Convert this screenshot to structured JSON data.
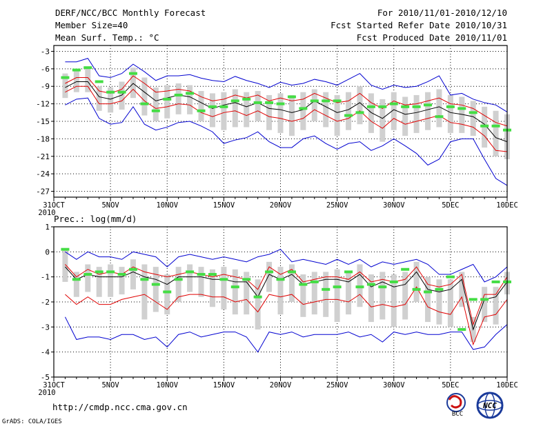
{
  "header": {
    "title": "DERF/NCC/BCC Monthly Forecast",
    "member_size": "Member Size=40",
    "variable": "Mean Surf. Temp.: °C",
    "forecast_period": "For 2010/11/01-2010/12/10",
    "start_date": "Fcst Started Refer Date 2010/10/31",
    "produced_date": "Fcst Produced Date 2010/11/01"
  },
  "footer": {
    "url": "http://cmdp.ncc.cma.gov.cn",
    "credit": "GrADS: COLA/IGES",
    "logos": [
      "BCC",
      "NCC"
    ]
  },
  "colors": {
    "ensemble_box": "#d0d0d0",
    "mean_line": "#000000",
    "spread_line": "#e00000",
    "extreme_line": "#0000d0",
    "observed_marker": "#44dd44",
    "grid": "#000000"
  },
  "chart_data": [
    {
      "type": "line",
      "name": "temperature",
      "title": "Mean Surf. Temp.: °C",
      "xlabel": "",
      "ylabel": "°C",
      "xlim": [
        0,
        40
      ],
      "ylim": [
        -28,
        -2
      ],
      "yticks": [
        -3,
        -6,
        -9,
        -12,
        -15,
        -18,
        -21,
        -24,
        -27
      ],
      "ytick_labels": [
        "-3",
        "-6",
        "-9",
        "-12",
        "-15",
        "-18",
        "-21",
        "-24",
        "-27"
      ],
      "xtick_days": [
        0,
        5,
        10,
        15,
        20,
        25,
        30,
        35,
        40
      ],
      "xtick_labels": [
        "31OCT",
        "5NOV",
        "10NOV",
        "15NOV",
        "20NOV",
        "25NOV",
        "30NOV",
        "5DEC",
        "10DEC"
      ],
      "year_label": "2010",
      "days": [
        1,
        2,
        3,
        4,
        5,
        6,
        7,
        8,
        9,
        10,
        11,
        12,
        13,
        14,
        15,
        16,
        17,
        18,
        19,
        20,
        21,
        22,
        23,
        24,
        25,
        26,
        27,
        28,
        29,
        30,
        31,
        32,
        33,
        34,
        35,
        36,
        37,
        38,
        39,
        40
      ],
      "series": [
        {
          "name": "ensemble max",
          "values": [
            -4.8,
            -4.8,
            -4.2,
            -7.2,
            -7.5,
            -6.8,
            -5.2,
            -6.5,
            -8.0,
            -7.2,
            -7.2,
            -7.0,
            -7.6,
            -8.0,
            -8.2,
            -7.3,
            -8.0,
            -8.5,
            -9.2,
            -8.3,
            -8.8,
            -8.5,
            -7.8,
            -8.2,
            -8.8,
            -7.8,
            -6.8,
            -8.8,
            -9.5,
            -8.8,
            -9.2,
            -9.0,
            -8.2,
            -7.2,
            -10.5,
            -10.2,
            -11.2,
            -11.8,
            -12.2,
            -13.4
          ]
        },
        {
          "name": "mean + spread",
          "values": [
            -8.5,
            -7.5,
            -7.5,
            -9.8,
            -10.2,
            -9.5,
            -7.2,
            -8.5,
            -10.0,
            -9.8,
            -9.5,
            -9.8,
            -10.8,
            -11.5,
            -11.2,
            -10.5,
            -11.0,
            -10.5,
            -11.5,
            -11.0,
            -11.5,
            -11.2,
            -10.2,
            -11.0,
            -11.8,
            -11.5,
            -10.2,
            -11.8,
            -12.8,
            -11.5,
            -12.2,
            -12.0,
            -11.5,
            -11.0,
            -12.0,
            -12.2,
            -12.8,
            -14.0,
            -15.2,
            -15.8
          ]
        },
        {
          "name": "ensemble mean",
          "values": [
            -9.2,
            -8.2,
            -8.2,
            -10.8,
            -11.2,
            -10.5,
            -8.5,
            -10.0,
            -11.5,
            -11.0,
            -10.5,
            -10.8,
            -11.8,
            -12.8,
            -12.2,
            -11.8,
            -12.5,
            -11.8,
            -12.8,
            -13.0,
            -13.5,
            -13.0,
            -11.5,
            -12.5,
            -13.5,
            -13.0,
            -11.8,
            -13.5,
            -14.5,
            -13.0,
            -13.8,
            -13.5,
            -13.0,
            -12.5,
            -13.5,
            -13.8,
            -14.2,
            -15.5,
            -17.8,
            -18.5
          ]
        },
        {
          "name": "mean - spread",
          "values": [
            -10.0,
            -9.0,
            -9.0,
            -12.0,
            -12.0,
            -11.5,
            -9.5,
            -11.5,
            -12.8,
            -12.5,
            -12.0,
            -12.2,
            -13.5,
            -14.2,
            -13.5,
            -13.2,
            -14.0,
            -13.2,
            -14.2,
            -14.5,
            -15.0,
            -14.5,
            -13.0,
            -14.0,
            -15.0,
            -14.5,
            -13.2,
            -15.0,
            -16.2,
            -14.5,
            -15.5,
            -15.0,
            -14.5,
            -14.0,
            -15.2,
            -15.5,
            -16.0,
            -17.5,
            -20.0,
            -20.2
          ]
        },
        {
          "name": "ensemble min",
          "values": [
            -12.2,
            -11.2,
            -11.0,
            -14.5,
            -15.5,
            -15.2,
            -12.5,
            -15.5,
            -16.5,
            -16.0,
            -15.2,
            -15.0,
            -15.8,
            -16.8,
            -18.8,
            -18.2,
            -17.8,
            -16.8,
            -18.5,
            -19.5,
            -19.5,
            -18.0,
            -17.5,
            -18.8,
            -19.8,
            -18.8,
            -18.5,
            -20.0,
            -19.2,
            -18.0,
            -19.2,
            -20.5,
            -22.5,
            -21.5,
            -18.5,
            -18.0,
            -18.0,
            -21.5,
            -24.8,
            -26.0
          ]
        },
        {
          "name": "observed",
          "values": [
            -7.5,
            -6.2,
            -5.8,
            -8.2,
            -10.0,
            -10.0,
            -6.8,
            -12.0,
            -13.2,
            -11.2,
            -10.5,
            -10.2,
            -13.2,
            -12.5,
            -12.5,
            -11.5,
            -11.2,
            -11.8,
            -11.8,
            -12.0,
            -10.8,
            -12.8,
            -11.5,
            -11.5,
            -11.5,
            -14.0,
            -13.5,
            -12.5,
            -12.5,
            -12.0,
            -12.5,
            -12.5,
            -12.2,
            -14.2,
            -12.5,
            -12.8,
            -13.5,
            -15.8,
            -15.8,
            -16.5
          ]
        }
      ],
      "box_range": {
        "high": [
          -6.8,
          -6.2,
          -6.0,
          -9.0,
          -9.2,
          -8.2,
          -5.8,
          -7.5,
          -9.2,
          -8.8,
          -8.5,
          -8.8,
          -9.8,
          -10.2,
          -10.0,
          -9.5,
          -10.0,
          -9.8,
          -10.5,
          -10.2,
          -10.5,
          -10.0,
          -9.5,
          -10.0,
          -10.5,
          -10.0,
          -9.0,
          -10.2,
          -11.2,
          -10.0,
          -10.8,
          -10.5,
          -10.0,
          -9.5,
          -10.5,
          -10.8,
          -11.5,
          -12.5,
          -13.2,
          -13.8
        ],
        "low": [
          -11.0,
          -10.0,
          -10.0,
          -13.2,
          -13.5,
          -13.0,
          -11.0,
          -14.0,
          -15.0,
          -14.5,
          -13.8,
          -13.8,
          -15.0,
          -16.0,
          -16.5,
          -16.0,
          -16.0,
          -15.0,
          -16.5,
          -17.0,
          -17.5,
          -16.5,
          -15.0,
          -16.0,
          -17.5,
          -16.5,
          -15.5,
          -17.0,
          -18.5,
          -16.5,
          -17.5,
          -17.0,
          -16.5,
          -16.0,
          -17.0,
          -17.0,
          -17.5,
          -19.5,
          -21.0,
          -21.5
        ]
      }
    },
    {
      "type": "line",
      "name": "precipitation",
      "title": "Prec.: log(mm/d)",
      "xlabel": "",
      "ylabel": "log(mm/d)",
      "xlim": [
        0,
        40
      ],
      "ylim": [
        -5,
        1
      ],
      "yticks": [
        1,
        0,
        -1,
        -2,
        -3,
        -4,
        -5
      ],
      "ytick_labels": [
        "1",
        "0",
        "-1",
        "-2",
        "-3",
        "-4",
        "-5"
      ],
      "xtick_days": [
        0,
        5,
        10,
        15,
        20,
        25,
        30,
        35,
        40
      ],
      "xtick_labels": [
        "31OCT",
        "5NOV",
        "10NOV",
        "15NOV",
        "20NOV",
        "25NOV",
        "30NOV",
        "5DEC",
        "10DEC"
      ],
      "year_label": "2010",
      "days": [
        1,
        2,
        3,
        4,
        5,
        6,
        7,
        8,
        9,
        10,
        11,
        12,
        13,
        14,
        15,
        16,
        17,
        18,
        19,
        20,
        21,
        22,
        23,
        24,
        25,
        26,
        27,
        28,
        29,
        30,
        31,
        32,
        33,
        34,
        35,
        36,
        37,
        38,
        39,
        40
      ],
      "series": [
        {
          "name": "ensemble max",
          "values": [
            0.0,
            -0.3,
            0.0,
            -0.2,
            -0.2,
            -0.3,
            0.0,
            -0.1,
            -0.2,
            -0.6,
            -0.2,
            -0.1,
            -0.2,
            -0.3,
            -0.2,
            -0.3,
            -0.4,
            -0.2,
            -0.1,
            0.1,
            -0.4,
            -0.3,
            -0.4,
            -0.5,
            -0.3,
            -0.5,
            -0.3,
            -0.6,
            -0.4,
            -0.5,
            -0.4,
            -0.3,
            -0.5,
            -0.9,
            -0.9,
            -0.7,
            -0.5,
            -1.2,
            -1.0,
            -0.6
          ]
        },
        {
          "name": "mean + spread",
          "values": [
            -0.5,
            -1.0,
            -0.7,
            -0.9,
            -0.8,
            -0.9,
            -0.6,
            -0.8,
            -0.9,
            -1.0,
            -0.9,
            -0.8,
            -0.9,
            -1.0,
            -0.9,
            -1.0,
            -1.1,
            -1.5,
            -0.6,
            -0.9,
            -0.7,
            -1.2,
            -1.1,
            -1.0,
            -1.0,
            -1.1,
            -0.8,
            -1.2,
            -1.1,
            -1.2,
            -1.1,
            -0.6,
            -1.3,
            -1.4,
            -1.3,
            -0.9,
            -2.9,
            -1.7,
            -1.7,
            -1.0
          ]
        },
        {
          "name": "ensemble mean",
          "values": [
            -0.6,
            -1.1,
            -0.9,
            -1.0,
            -1.0,
            -1.0,
            -0.8,
            -1.0,
            -1.1,
            -1.3,
            -1.0,
            -1.0,
            -1.0,
            -1.1,
            -1.1,
            -1.2,
            -1.2,
            -1.8,
            -0.9,
            -1.1,
            -0.9,
            -1.3,
            -1.2,
            -1.1,
            -1.1,
            -1.2,
            -0.9,
            -1.4,
            -1.2,
            -1.4,
            -1.3,
            -0.8,
            -1.5,
            -1.6,
            -1.5,
            -1.1,
            -3.1,
            -1.9,
            -1.8,
            -1.2
          ]
        },
        {
          "name": "mean - spread",
          "values": [
            -1.7,
            -2.1,
            -1.8,
            -2.1,
            -2.1,
            -1.9,
            -1.8,
            -1.7,
            -2.0,
            -2.3,
            -1.8,
            -1.7,
            -1.7,
            -1.8,
            -1.8,
            -2.0,
            -1.9,
            -2.4,
            -1.7,
            -1.8,
            -1.7,
            -2.1,
            -2.0,
            -1.9,
            -1.9,
            -2.0,
            -1.7,
            -2.2,
            -2.1,
            -2.2,
            -2.1,
            -1.4,
            -2.2,
            -2.4,
            -2.5,
            -1.8,
            -3.7,
            -2.6,
            -2.5,
            -1.9
          ]
        },
        {
          "name": "ensemble min",
          "values": [
            -2.6,
            -3.5,
            -3.4,
            -3.4,
            -3.5,
            -3.3,
            -3.3,
            -3.5,
            -3.4,
            -3.8,
            -3.3,
            -3.2,
            -3.4,
            -3.3,
            -3.2,
            -3.2,
            -3.4,
            -4.0,
            -3.2,
            -3.3,
            -3.2,
            -3.4,
            -3.3,
            -3.3,
            -3.3,
            -3.2,
            -3.4,
            -3.3,
            -3.6,
            -3.2,
            -3.3,
            -3.2,
            -3.3,
            -3.3,
            -3.2,
            -3.2,
            -3.9,
            -3.8,
            -3.3,
            -2.9
          ]
        },
        {
          "name": "observed",
          "values": [
            0.1,
            -1.1,
            -0.9,
            -0.8,
            -0.8,
            -0.9,
            -0.7,
            -1.1,
            -1.3,
            -1.6,
            -1.1,
            -0.8,
            -0.9,
            -0.9,
            -1.1,
            -1.4,
            -1.1,
            -1.8,
            -0.8,
            -1.1,
            -0.8,
            -1.3,
            -1.2,
            -1.5,
            -1.4,
            -0.8,
            -1.4,
            -1.3,
            -1.4,
            -1.2,
            -0.7,
            -1.5,
            -1.6,
            -1.5,
            -1.0,
            -3.1,
            -1.9,
            -1.9,
            -1.2,
            -1.2
          ]
        }
      ],
      "box_range": {
        "high": [
          0.1,
          -0.8,
          -0.5,
          -0.6,
          -0.5,
          -0.6,
          -0.3,
          -0.5,
          -0.6,
          -0.9,
          -0.6,
          -0.5,
          -0.6,
          -0.7,
          -0.6,
          -0.7,
          -0.8,
          -1.1,
          -0.4,
          -0.6,
          -0.5,
          -0.9,
          -0.8,
          -0.8,
          -0.7,
          -0.8,
          -0.5,
          -0.9,
          -0.8,
          -0.9,
          -0.8,
          -0.4,
          -1.0,
          -1.1,
          -1.1,
          -0.8,
          -2.6,
          -1.4,
          -1.4,
          -0.8
        ],
        "low": [
          -1.2,
          -1.8,
          -1.6,
          -1.8,
          -1.8,
          -1.7,
          -1.5,
          -2.7,
          -2.4,
          -2.5,
          -2.0,
          -1.6,
          -1.8,
          -2.2,
          -2.3,
          -2.5,
          -2.5,
          -3.1,
          -1.6,
          -2.5,
          -2.0,
          -2.6,
          -2.5,
          -2.6,
          -2.8,
          -2.5,
          -2.2,
          -2.8,
          -2.7,
          -3.0,
          -2.7,
          -2.0,
          -2.8,
          -2.9,
          -3.0,
          -2.2,
          -3.6,
          -2.8,
          -2.9,
          -1.7
        ]
      }
    }
  ]
}
